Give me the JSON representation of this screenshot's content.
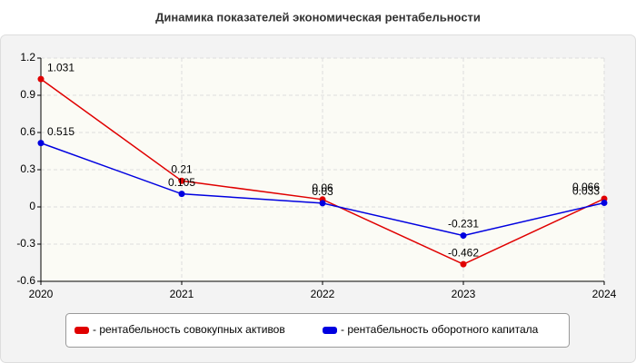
{
  "chart_data": {
    "type": "line",
    "title": "Динамика показателей экономическая рентабельности",
    "x": [
      2020,
      2021,
      2022,
      2023,
      2024
    ],
    "xlim": [
      2020,
      2024
    ],
    "xticks": [
      2020,
      2021,
      2022,
      2023,
      2024
    ],
    "ylim": [
      -0.6,
      1.2
    ],
    "yticks": [
      1.2,
      0.9,
      0.6,
      0.3,
      0,
      -0.3,
      -0.6
    ],
    "grid": true,
    "legend": "bottom",
    "series": [
      {
        "name": "- рентабельность совокупных активов",
        "color": "#e00000",
        "values": [
          1.031,
          0.21,
          0.06,
          -0.462,
          0.066
        ]
      },
      {
        "name": "- рентабельность оборотного капитала",
        "color": "#0000e0",
        "values": [
          0.515,
          0.105,
          0.03,
          -0.231,
          0.033
        ]
      }
    ]
  }
}
